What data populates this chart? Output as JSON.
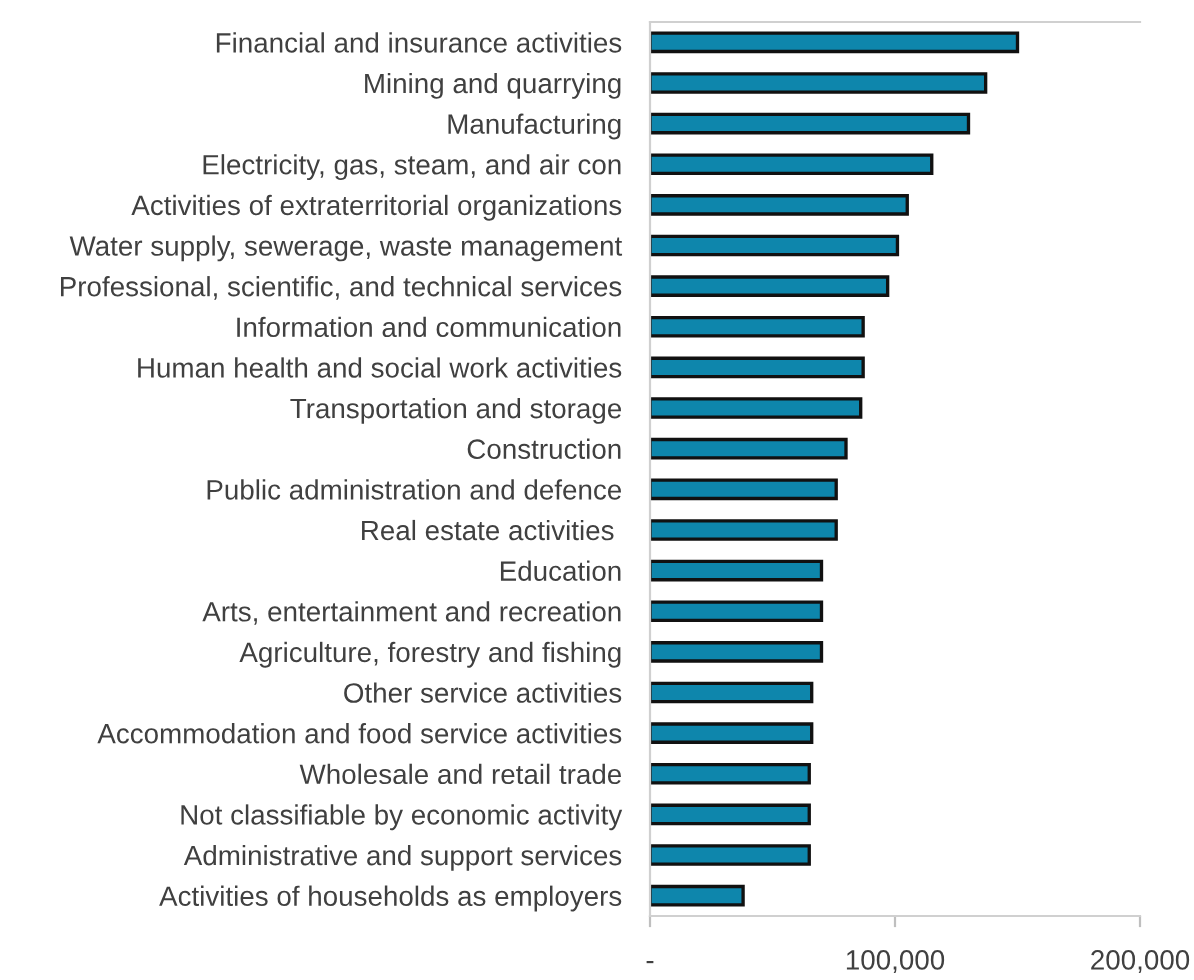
{
  "chart_data": {
    "type": "bar",
    "orientation": "horizontal",
    "categories": [
      "Financial and insurance activities",
      "Mining and quarrying",
      "Manufacturing",
      "Electricity, gas, steam, and air con",
      "Activities of extraterritorial organizations",
      "Water supply, sewerage, waste management",
      "Professional, scientific, and technical services",
      "Information and communication",
      "Human health and social work activities",
      "Transportation and storage",
      "Construction",
      "Public administration and defence",
      "Real estate activities ",
      "Education",
      "Arts, entertainment and recreation",
      "Agriculture, forestry and fishing",
      "Other service activities",
      "Accommodation and food service activities",
      "Wholesale and retail trade",
      "Not classifiable by economic activity",
      "Administrative and support services",
      "Activities of households as employers"
    ],
    "values": [
      150000,
      137000,
      130000,
      115000,
      105000,
      101000,
      97000,
      87000,
      87000,
      86000,
      80000,
      76000,
      76000,
      70000,
      70000,
      70000,
      66000,
      66000,
      65000,
      65000,
      65000,
      38000
    ],
    "color": "#0e86ac",
    "xlim": [
      0,
      200000
    ],
    "xticks": [
      {
        "value": 0,
        "label": "-"
      },
      {
        "value": 100000,
        "label": "100,000"
      },
      {
        "value": 200000,
        "label": "200,000"
      }
    ],
    "grid": false
  }
}
